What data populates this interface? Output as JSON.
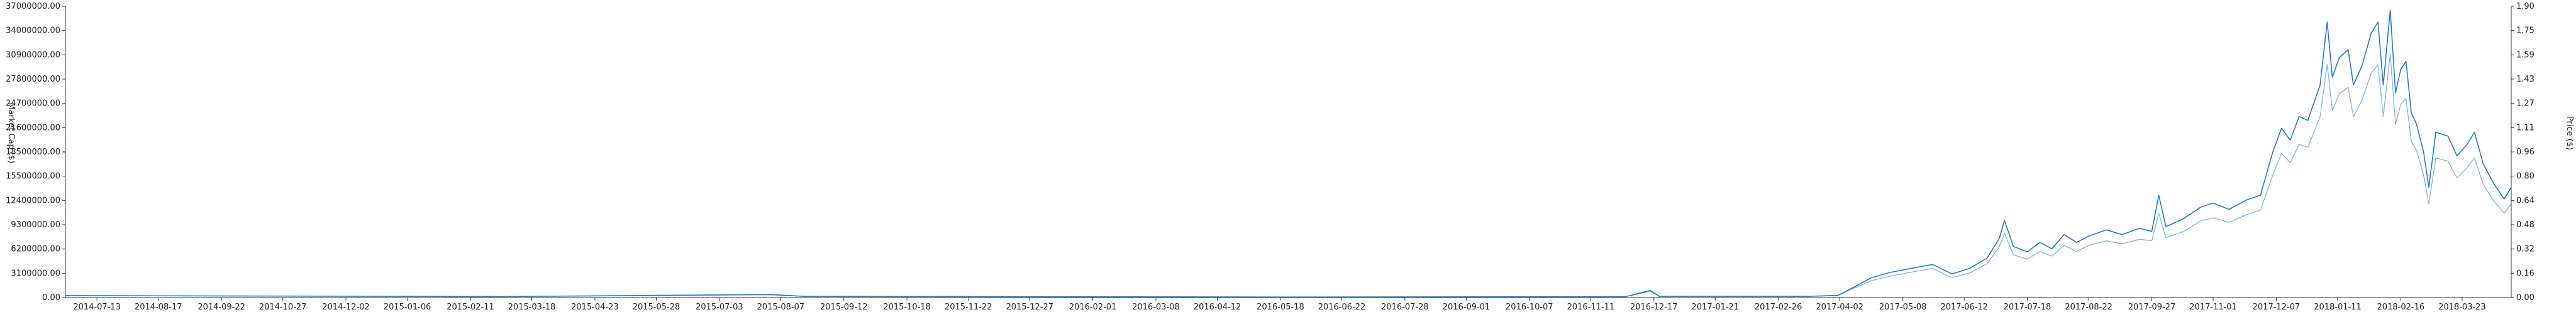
{
  "chart_data": {
    "type": "line",
    "title": "",
    "colors": {
      "market_cap": "#1f7ad6",
      "price": "#7fb4e8",
      "axis": "#333333"
    },
    "axes": {
      "left": {
        "label": "Market Cap ($)",
        "ylim": [
          0,
          37000000
        ],
        "ticks": [
          "37000000.00",
          "34000000.00",
          "30900000.00",
          "27800000.00",
          "24700000.00",
          "21600000.00",
          "18500000.00",
          "15500000.00",
          "12400000.00",
          "9300000.00",
          "6200000.00",
          "3100000.00",
          "0.00"
        ]
      },
      "right": {
        "label": "Price ($)",
        "ylim": [
          0,
          1.9
        ],
        "ticks": [
          "1.90",
          "1.75",
          "1.59",
          "1.43",
          "1.27",
          "1.11",
          "0.96",
          "0.80",
          "0.64",
          "0.48",
          "0.32",
          "0.16",
          "0.00"
        ]
      }
    },
    "x": {
      "type": "date",
      "range": [
        "2014-06-25",
        "2018-04-20"
      ],
      "ticks": [
        "2014-07-13",
        "2014-08-17",
        "2014-09-22",
        "2014-10-27",
        "2014-12-02",
        "2015-01-06",
        "2015-02-11",
        "2015-03-18",
        "2015-04-23",
        "2015-05-28",
        "2015-07-03",
        "2015-08-07",
        "2015-09-12",
        "2015-10-18",
        "2015-11-22",
        "2015-12-27",
        "2016-02-01",
        "2016-03-08",
        "2016-04-12",
        "2016-05-18",
        "2016-06-22",
        "2016-07-28",
        "2016-09-01",
        "2016-10-07",
        "2016-11-11",
        "2016-12-17",
        "2017-01-21",
        "2017-02-26",
        "2017-04-02",
        "2017-05-08",
        "2017-06-12",
        "2017-07-18",
        "2017-08-22",
        "2017-09-27",
        "2017-11-01",
        "2017-12-07",
        "2018-01-11",
        "2018-02-16",
        "2018-03-23"
      ]
    },
    "series": [
      {
        "name": "Market Cap",
        "axis": "left",
        "points": [
          [
            "2014-06-25",
            250000
          ],
          [
            "2015-03-01",
            120000
          ],
          [
            "2015-08-01",
            380000
          ],
          [
            "2015-08-20",
            150000
          ],
          [
            "2016-06-01",
            60000
          ],
          [
            "2016-12-01",
            120000
          ],
          [
            "2016-12-15",
            900000
          ],
          [
            "2016-12-20",
            150000
          ],
          [
            "2017-03-15",
            150000
          ],
          [
            "2017-04-01",
            280000
          ],
          [
            "2017-04-10",
            1300000
          ],
          [
            "2017-04-20",
            2500000
          ],
          [
            "2017-05-01",
            3200000
          ],
          [
            "2017-05-15",
            3800000
          ],
          [
            "2017-05-25",
            4200000
          ],
          [
            "2017-06-05",
            3000000
          ],
          [
            "2017-06-15",
            3700000
          ],
          [
            "2017-06-25",
            5000000
          ],
          [
            "2017-07-02",
            7500000
          ],
          [
            "2017-07-05",
            9800000
          ],
          [
            "2017-07-10",
            6500000
          ],
          [
            "2017-07-18",
            5800000
          ],
          [
            "2017-07-25",
            7000000
          ],
          [
            "2017-08-01",
            6200000
          ],
          [
            "2017-08-08",
            8000000
          ],
          [
            "2017-08-15",
            7000000
          ],
          [
            "2017-08-22",
            7800000
          ],
          [
            "2017-09-01",
            8600000
          ],
          [
            "2017-09-10",
            8000000
          ],
          [
            "2017-09-20",
            8800000
          ],
          [
            "2017-09-27",
            8400000
          ],
          [
            "2017-10-01",
            13000000
          ],
          [
            "2017-10-05",
            9000000
          ],
          [
            "2017-10-15",
            10000000
          ],
          [
            "2017-10-25",
            11500000
          ],
          [
            "2017-11-01",
            12000000
          ],
          [
            "2017-11-10",
            11200000
          ],
          [
            "2017-11-20",
            12400000
          ],
          [
            "2017-11-28",
            13000000
          ],
          [
            "2017-12-05",
            18500000
          ],
          [
            "2017-12-10",
            21500000
          ],
          [
            "2017-12-15",
            20000000
          ],
          [
            "2017-12-20",
            23000000
          ],
          [
            "2017-12-25",
            22500000
          ],
          [
            "2018-01-01",
            27000000
          ],
          [
            "2018-01-05",
            35000000
          ],
          [
            "2018-01-08",
            28000000
          ],
          [
            "2018-01-12",
            30500000
          ],
          [
            "2018-01-17",
            31500000
          ],
          [
            "2018-01-20",
            27000000
          ],
          [
            "2018-01-25",
            29500000
          ],
          [
            "2018-01-30",
            33500000
          ],
          [
            "2018-02-03",
            35000000
          ],
          [
            "2018-02-06",
            27000000
          ],
          [
            "2018-02-10",
            36500000
          ],
          [
            "2018-02-13",
            26000000
          ],
          [
            "2018-02-16",
            29000000
          ],
          [
            "2018-02-19",
            30000000
          ],
          [
            "2018-02-22",
            23500000
          ],
          [
            "2018-02-25",
            22000000
          ],
          [
            "2018-03-01",
            18500000
          ],
          [
            "2018-03-04",
            14000000
          ],
          [
            "2018-03-08",
            21000000
          ],
          [
            "2018-03-15",
            20500000
          ],
          [
            "2018-03-20",
            18000000
          ],
          [
            "2018-03-26",
            19500000
          ],
          [
            "2018-03-30",
            21000000
          ],
          [
            "2018-04-04",
            17000000
          ],
          [
            "2018-04-10",
            14500000
          ],
          [
            "2018-04-16",
            12500000
          ],
          [
            "2018-04-20",
            14000000
          ]
        ]
      },
      {
        "name": "Price",
        "axis": "right",
        "points": [
          [
            "2014-06-25",
            0.012
          ],
          [
            "2015-03-01",
            0.006
          ],
          [
            "2015-08-01",
            0.018
          ],
          [
            "2015-08-20",
            0.007
          ],
          [
            "2016-06-01",
            0.003
          ],
          [
            "2016-12-01",
            0.006
          ],
          [
            "2016-12-15",
            0.04
          ],
          [
            "2016-12-20",
            0.007
          ],
          [
            "2017-03-15",
            0.007
          ],
          [
            "2017-04-01",
            0.013
          ],
          [
            "2017-04-10",
            0.06
          ],
          [
            "2017-04-20",
            0.11
          ],
          [
            "2017-05-01",
            0.14
          ],
          [
            "2017-05-15",
            0.17
          ],
          [
            "2017-05-25",
            0.19
          ],
          [
            "2017-06-05",
            0.13
          ],
          [
            "2017-06-15",
            0.16
          ],
          [
            "2017-06-25",
            0.22
          ],
          [
            "2017-07-02",
            0.33
          ],
          [
            "2017-07-05",
            0.42
          ],
          [
            "2017-07-10",
            0.28
          ],
          [
            "2017-07-18",
            0.25
          ],
          [
            "2017-07-25",
            0.3
          ],
          [
            "2017-08-01",
            0.27
          ],
          [
            "2017-08-08",
            0.34
          ],
          [
            "2017-08-15",
            0.3
          ],
          [
            "2017-08-22",
            0.34
          ],
          [
            "2017-09-01",
            0.37
          ],
          [
            "2017-09-10",
            0.35
          ],
          [
            "2017-09-20",
            0.38
          ],
          [
            "2017-09-27",
            0.37
          ],
          [
            "2017-10-01",
            0.55
          ],
          [
            "2017-10-05",
            0.39
          ],
          [
            "2017-10-15",
            0.43
          ],
          [
            "2017-10-25",
            0.5
          ],
          [
            "2017-11-01",
            0.52
          ],
          [
            "2017-11-10",
            0.49
          ],
          [
            "2017-11-20",
            0.54
          ],
          [
            "2017-11-28",
            0.57
          ],
          [
            "2017-12-05",
            0.8
          ],
          [
            "2017-12-10",
            0.94
          ],
          [
            "2017-12-15",
            0.88
          ],
          [
            "2017-12-20",
            1.0
          ],
          [
            "2017-12-25",
            0.98
          ],
          [
            "2018-01-01",
            1.18
          ],
          [
            "2018-01-05",
            1.52
          ],
          [
            "2018-01-08",
            1.22
          ],
          [
            "2018-01-12",
            1.33
          ],
          [
            "2018-01-17",
            1.37
          ],
          [
            "2018-01-20",
            1.18
          ],
          [
            "2018-01-25",
            1.29
          ],
          [
            "2018-01-30",
            1.46
          ],
          [
            "2018-02-03",
            1.52
          ],
          [
            "2018-02-06",
            1.18
          ],
          [
            "2018-02-10",
            1.59
          ],
          [
            "2018-02-13",
            1.13
          ],
          [
            "2018-02-16",
            1.26
          ],
          [
            "2018-02-19",
            1.3
          ],
          [
            "2018-02-22",
            1.02
          ],
          [
            "2018-02-25",
            0.96
          ],
          [
            "2018-03-01",
            0.8
          ],
          [
            "2018-03-04",
            0.61
          ],
          [
            "2018-03-08",
            0.91
          ],
          [
            "2018-03-15",
            0.89
          ],
          [
            "2018-03-20",
            0.78
          ],
          [
            "2018-03-26",
            0.85
          ],
          [
            "2018-03-30",
            0.91
          ],
          [
            "2018-04-04",
            0.74
          ],
          [
            "2018-04-10",
            0.63
          ],
          [
            "2018-04-16",
            0.55
          ],
          [
            "2018-04-20",
            0.61
          ]
        ]
      }
    ]
  }
}
